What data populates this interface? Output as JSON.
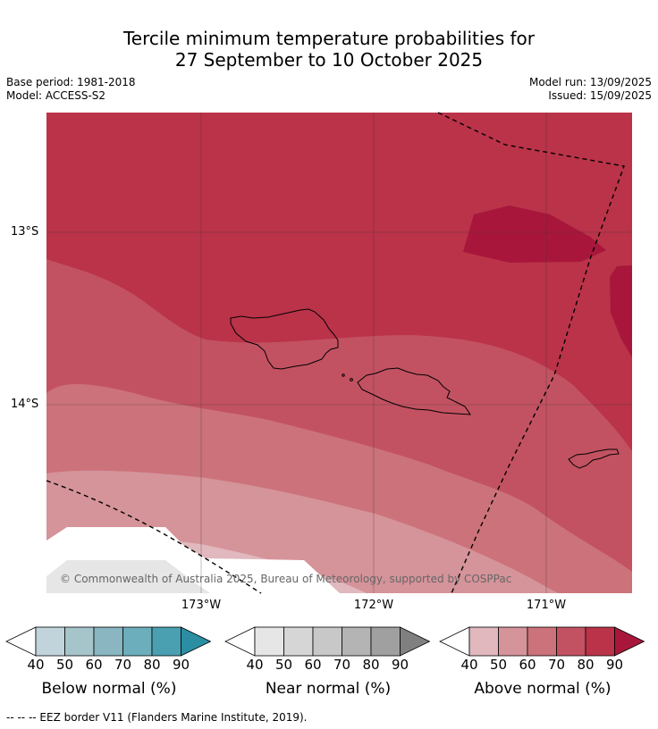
{
  "title_line1": "Tercile minimum temperature probabilities for",
  "title_line2": "27 September to 10 October 2025",
  "base_period": "Base period: 1981-2018",
  "model": "Model: ACCESS-S2",
  "model_run": "Model run: 13/09/2025",
  "issued": "Issued: 15/09/2025",
  "lat_labels": [
    "13°S",
    "14°S"
  ],
  "lon_labels": [
    "173°W",
    "172°W",
    "171°W"
  ],
  "copyright": "© Commonwealth of Australia 2025, Bureau of Meteorology, supported by COSPPac",
  "colorbars": [
    {
      "label": "Below normal (%)",
      "colors": [
        "#c1d4db",
        "#a6c5cb",
        "#89b6c0",
        "#6daebc",
        "#4a9fb1",
        "#2b8ea2"
      ]
    },
    {
      "label": "Near normal (%)",
      "colors": [
        "#e6e6e6",
        "#d6d6d6",
        "#c8c8c8",
        "#b4b4b4",
        "#a0a0a0",
        "#808080"
      ]
    },
    {
      "label": "Above normal (%)",
      "colors": [
        "#e0b8bd",
        "#d5939a",
        "#cc727a",
        "#c25262",
        "#ba3349",
        "#a8173b"
      ]
    }
  ],
  "colorbar_ticks": [
    "40",
    "50",
    "60",
    "70",
    "80",
    "90"
  ],
  "footnote": "--  --  -- EEZ border V11 (Flanders Marine Institute, 2019)."
}
